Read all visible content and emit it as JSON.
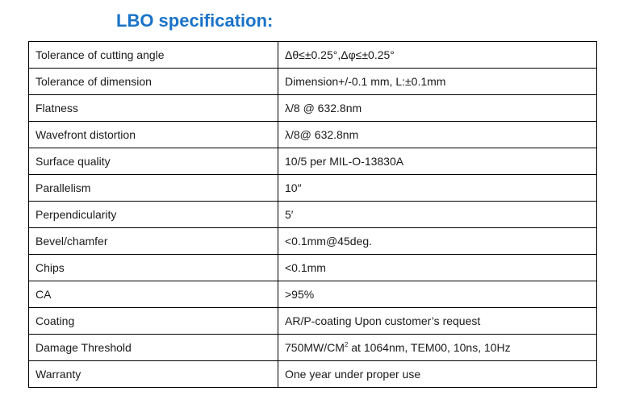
{
  "title": "LBO specification:",
  "rows": [
    {
      "parameter": "Tolerance of cutting angle",
      "value": "Δθ≤±0.25°,Δφ≤±0.25°"
    },
    {
      "parameter": "Tolerance of dimension",
      "value": "Dimension+/-0.1 mm, L:±0.1mm"
    },
    {
      "parameter": "Flatness",
      "value": "λ/8 @ 632.8nm"
    },
    {
      "parameter": "Wavefront distortion",
      "value": "λ/8@ 632.8nm"
    },
    {
      "parameter": "Surface quality",
      "value": "10/5  per MIL-O-13830A"
    },
    {
      "parameter": "Parallelism",
      "value": "10″"
    },
    {
      "parameter": "Perpendicularity",
      "value": "5′"
    },
    {
      "parameter": "Bevel/chamfer",
      "value": "<0.1mm@45deg."
    },
    {
      "parameter": "Chips",
      "value": "<0.1mm"
    },
    {
      "parameter": "CA",
      "value": ">95%"
    },
    {
      "parameter": "Coating",
      "value": "AR/P-coating Upon customer’s request"
    },
    {
      "parameter": "Damage Threshold",
      "value_pre": "750MW/CM",
      "value_sup": "2",
      "value_post": " at 1064nm, TEM00, 10ns, 10Hz"
    },
    {
      "parameter": "Warranty",
      "value": "One year under proper use"
    }
  ],
  "colors": {
    "title": "#1a73c8",
    "border": "#000000",
    "text": "#1a1a1a"
  }
}
